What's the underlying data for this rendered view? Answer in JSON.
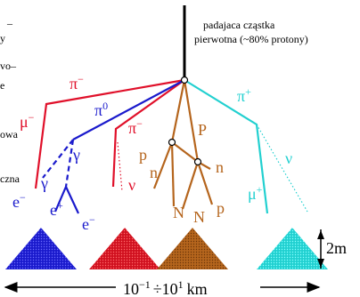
{
  "header": {
    "line1": "padajaca cząstka",
    "line2": "pierwotna (~80% protony)"
  },
  "left_fragments": [
    "–",
    "y",
    "vo–",
    "e",
    "owa",
    "czna"
  ],
  "particles": [
    {
      "base": "π",
      "sup": "−"
    },
    {
      "base": "π",
      "sup": "0"
    },
    {
      "base": "μ",
      "sup": "−"
    },
    {
      "base": "γ"
    },
    {
      "base": "γ"
    },
    {
      "base": "e",
      "sup": "−"
    },
    {
      "base": "e",
      "sup": "+"
    },
    {
      "base": "e",
      "sup": "−"
    },
    {
      "base": "π",
      "sup": "−"
    },
    {
      "base": "ν"
    },
    {
      "base": "p"
    },
    {
      "base": "n"
    },
    {
      "base": "P"
    },
    {
      "base": "n"
    },
    {
      "base": "N"
    },
    {
      "base": "N"
    },
    {
      "base": "p"
    },
    {
      "base": "π",
      "sup": "+"
    },
    {
      "base": "ν"
    },
    {
      "base": "μ",
      "sup": "+"
    }
  ],
  "scale": {
    "height": "2m",
    "low": {
      "base": "10",
      "sup": "−1"
    },
    "div": "÷",
    "high": {
      "base": "10",
      "sup": "1"
    },
    "unit": "km"
  }
}
